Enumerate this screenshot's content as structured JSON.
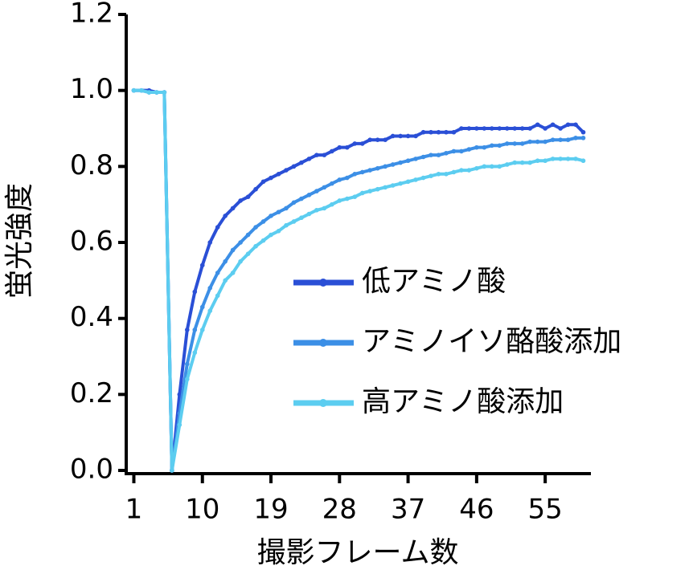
{
  "chart_data": {
    "type": "line",
    "x_label": "撮影フレーム数",
    "y_label": "蛍光強度",
    "x": [
      1,
      2,
      3,
      4,
      5,
      6,
      7,
      8,
      9,
      10,
      11,
      12,
      13,
      14,
      15,
      16,
      17,
      18,
      19,
      20,
      21,
      22,
      23,
      24,
      25,
      26,
      27,
      28,
      29,
      30,
      31,
      32,
      33,
      34,
      35,
      36,
      37,
      38,
      39,
      40,
      41,
      42,
      43,
      44,
      45,
      46,
      47,
      48,
      49,
      50,
      51,
      52,
      53,
      54,
      55,
      56,
      57,
      58,
      59,
      60
    ],
    "series": [
      {
        "name": "低アミノ酸",
        "color": "#2a4fd6",
        "values": [
          1.0,
          1.0,
          1.0,
          0.995,
          0.995,
          0,
          0.2,
          0.37,
          0.47,
          0.54,
          0.6,
          0.64,
          0.67,
          0.69,
          0.71,
          0.72,
          0.74,
          0.76,
          0.77,
          0.78,
          0.79,
          0.8,
          0.81,
          0.82,
          0.83,
          0.83,
          0.84,
          0.85,
          0.85,
          0.86,
          0.86,
          0.87,
          0.87,
          0.87,
          0.88,
          0.88,
          0.88,
          0.88,
          0.89,
          0.89,
          0.89,
          0.89,
          0.89,
          0.9,
          0.9,
          0.9,
          0.9,
          0.9,
          0.9,
          0.9,
          0.9,
          0.9,
          0.9,
          0.91,
          0.9,
          0.91,
          0.9,
          0.91,
          0.91,
          0.89
        ]
      },
      {
        "name": "アミノイソ酪酸添加",
        "color": "#3c8fe6",
        "values": [
          1.0,
          1.0,
          0.995,
          0.995,
          0.995,
          0,
          0.15,
          0.28,
          0.37,
          0.43,
          0.48,
          0.52,
          0.55,
          0.58,
          0.6,
          0.62,
          0.64,
          0.655,
          0.67,
          0.68,
          0.69,
          0.705,
          0.715,
          0.725,
          0.735,
          0.745,
          0.755,
          0.765,
          0.77,
          0.78,
          0.785,
          0.79,
          0.795,
          0.8,
          0.805,
          0.81,
          0.815,
          0.82,
          0.825,
          0.83,
          0.83,
          0.835,
          0.84,
          0.84,
          0.845,
          0.85,
          0.85,
          0.855,
          0.855,
          0.86,
          0.86,
          0.86,
          0.865,
          0.865,
          0.865,
          0.87,
          0.87,
          0.87,
          0.875,
          0.875
        ]
      },
      {
        "name": "高アミノ酸添加",
        "color": "#5ccdf0",
        "values": [
          1.0,
          1.0,
          0.995,
          0.995,
          0.995,
          0,
          0.12,
          0.24,
          0.31,
          0.37,
          0.42,
          0.46,
          0.5,
          0.52,
          0.55,
          0.57,
          0.59,
          0.605,
          0.62,
          0.63,
          0.645,
          0.655,
          0.665,
          0.675,
          0.685,
          0.69,
          0.7,
          0.71,
          0.715,
          0.72,
          0.73,
          0.735,
          0.74,
          0.745,
          0.75,
          0.755,
          0.76,
          0.765,
          0.77,
          0.775,
          0.78,
          0.78,
          0.785,
          0.79,
          0.79,
          0.795,
          0.8,
          0.8,
          0.8,
          0.805,
          0.81,
          0.81,
          0.81,
          0.815,
          0.815,
          0.82,
          0.82,
          0.82,
          0.82,
          0.815
        ]
      }
    ],
    "xlim": [
      0,
      61
    ],
    "xticks": [
      1,
      10,
      19,
      28,
      37,
      46,
      55
    ],
    "ylim": [
      0,
      1.2
    ],
    "yticks": [
      {
        "value": 0,
        "label": "0.0"
      },
      0.2,
      0.4,
      0.6,
      0.8,
      {
        "value": 1,
        "label": "1.0"
      },
      1.2
    ],
    "grid": false
  }
}
